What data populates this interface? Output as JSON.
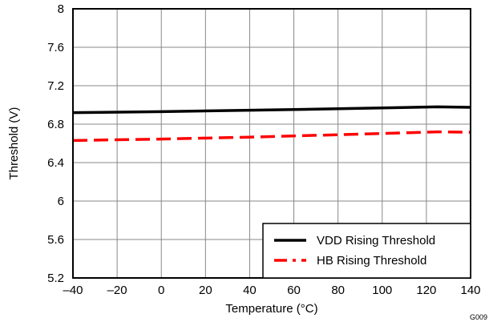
{
  "figure_id": "G009",
  "chart_data": {
    "type": "line",
    "xlabel": "Temperature (°C)",
    "ylabel": "Threshold (V)",
    "xlim": [
      -40,
      140
    ],
    "ylim": [
      5.2,
      8
    ],
    "x_ticks": [
      "–40",
      "–20",
      "0",
      "20",
      "40",
      "60",
      "80",
      "100",
      "120",
      "140"
    ],
    "x_tick_values": [
      -40,
      -20,
      0,
      20,
      40,
      60,
      80,
      100,
      120,
      140
    ],
    "y_ticks": [
      "5.2",
      "5.6",
      "6",
      "6.4",
      "6.8",
      "7.2",
      "7.6",
      "8"
    ],
    "y_tick_values": [
      5.2,
      5.6,
      6.0,
      6.4,
      6.8,
      7.2,
      7.6,
      8.0
    ],
    "grid": true,
    "legend_position": "bottom-right",
    "series": [
      {
        "name": "VDD Rising Threshold",
        "color": "#000000",
        "style": "solid",
        "x": [
          -40,
          0,
          40,
          80,
          125,
          140
        ],
        "y": [
          6.92,
          6.93,
          6.945,
          6.96,
          6.98,
          6.975
        ]
      },
      {
        "name": "HB Rising Threshold",
        "color": "#ff0000",
        "style": "dashed",
        "x": [
          -40,
          0,
          40,
          80,
          125,
          140
        ],
        "y": [
          6.63,
          6.645,
          6.665,
          6.69,
          6.72,
          6.715
        ]
      }
    ]
  }
}
